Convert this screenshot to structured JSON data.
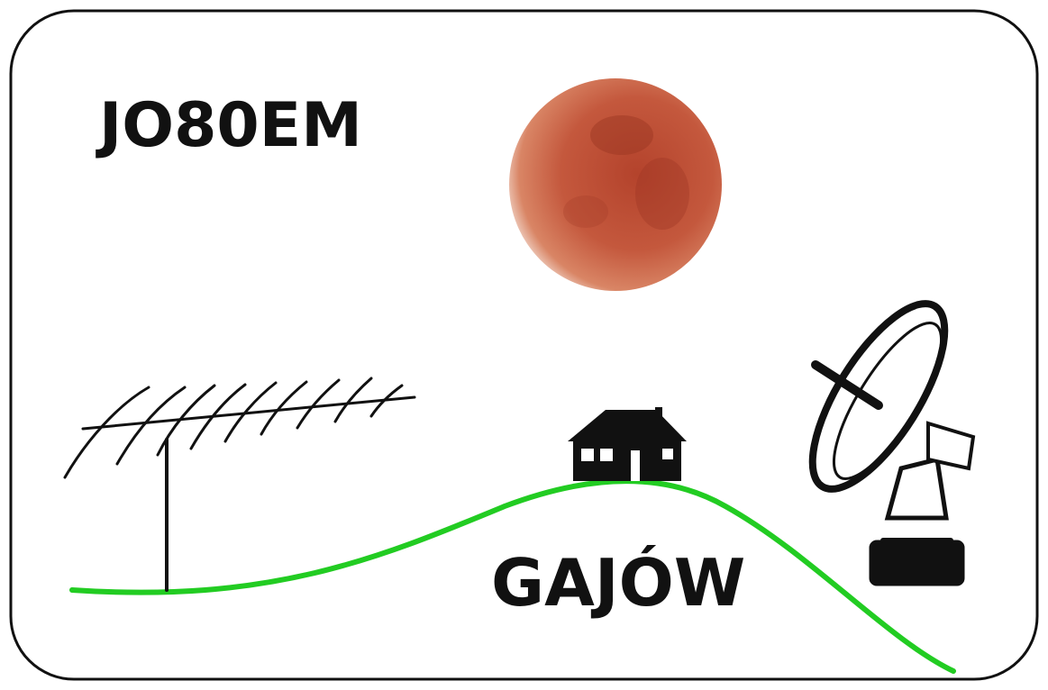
{
  "locator": "JO80EM",
  "place": "GAJÓW"
}
